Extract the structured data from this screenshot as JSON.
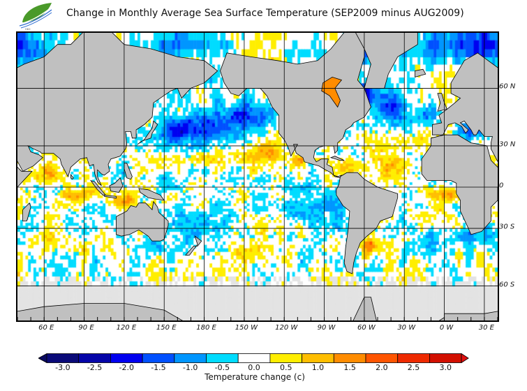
{
  "title": "Change in Monthly Average Sea Surface Temperature (SEP2009 minus AUG2009)",
  "logo": {
    "icon": "green-leaf-wave-logo",
    "text": "HKO"
  },
  "map": {
    "lon_labels": [
      "60 E",
      "90 E",
      "120 E",
      "150 E",
      "180 E",
      "150 W",
      "120 W",
      "90 W",
      "60 W",
      "30 W",
      "0 W",
      "30 E"
    ],
    "lat_labels": [
      "60 N",
      "30 N",
      "0",
      "30 S",
      "60 S"
    ],
    "land_color": "#c0c0c0",
    "ice_color": "#e3e3e3"
  },
  "colorbar": {
    "title": "Temperature change  (c)",
    "tick_labels": [
      "-3.0",
      "-2.5",
      "-2.0",
      "-1.5",
      "-1.0",
      "-0.5",
      "0.0",
      "0.5",
      "1.0",
      "1.5",
      "2.0",
      "2.5",
      "3.0"
    ],
    "colors": [
      "#0a0a78",
      "#0505a8",
      "#0000f0",
      "#0050ff",
      "#0096ff",
      "#00dcff",
      "#ffffff",
      "#ffee00",
      "#ffbe00",
      "#ff8c00",
      "#ff5500",
      "#ee2a00",
      "#d20f00"
    ],
    "under_color": "#0a0a60",
    "over_color": "#e01010"
  }
}
